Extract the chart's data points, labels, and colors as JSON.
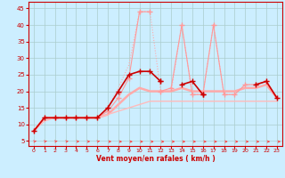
{
  "xlabel": "Vent moyen/en rafales ( km/h )",
  "x_ticks": [
    0,
    1,
    2,
    3,
    4,
    5,
    6,
    7,
    8,
    9,
    10,
    11,
    12,
    13,
    14,
    15,
    16,
    17,
    18,
    19,
    20,
    21,
    22,
    23
  ],
  "y_ticks": [
    5,
    10,
    15,
    20,
    25,
    30,
    35,
    40,
    45
  ],
  "ylim": [
    3.5,
    47
  ],
  "xlim": [
    -0.5,
    23.5
  ],
  "bg_color": "#cceeff",
  "grid_color": "#aacccc",
  "series": [
    {
      "name": "light_dotted",
      "x": [
        0,
        1,
        2,
        3,
        4,
        5,
        6,
        7,
        8,
        9,
        10,
        11,
        12,
        13,
        14,
        15,
        16,
        17,
        18,
        19,
        20,
        21,
        22,
        23
      ],
      "y": [
        8,
        12,
        12,
        12,
        12,
        12,
        12,
        15,
        21,
        28,
        44,
        44,
        20,
        20,
        40,
        19,
        19,
        40,
        19,
        19,
        22,
        22,
        23,
        18
      ],
      "color": "#ffaaaa",
      "lw": 0.8,
      "ls": "dotted",
      "marker": null
    },
    {
      "name": "light_solid1",
      "x": [
        0,
        1,
        2,
        3,
        4,
        5,
        6,
        7,
        8,
        9,
        10,
        11,
        12,
        13,
        14,
        15,
        16,
        17,
        18,
        19,
        20,
        21,
        22,
        23
      ],
      "y": [
        8,
        12,
        12,
        12,
        12,
        12,
        12,
        13,
        16,
        19,
        21,
        20,
        20,
        20,
        21,
        20,
        20,
        20,
        20,
        20,
        21,
        21,
        22,
        18
      ],
      "color": "#ffaaaa",
      "lw": 1.8,
      "ls": "solid",
      "marker": null
    },
    {
      "name": "light_solid2",
      "x": [
        0,
        1,
        2,
        3,
        4,
        5,
        6,
        7,
        8,
        9,
        10,
        11,
        12,
        13,
        14,
        15,
        16,
        17,
        18,
        19,
        20,
        21,
        22,
        23
      ],
      "y": [
        8,
        11,
        12,
        12,
        12,
        12,
        12,
        13,
        14,
        15,
        16,
        17,
        17,
        17,
        17,
        17,
        17,
        17,
        17,
        17,
        17,
        17,
        17,
        17
      ],
      "color": "#ffbbbb",
      "lw": 1.0,
      "ls": "solid",
      "marker": null
    },
    {
      "name": "light_marker1",
      "x": [
        0,
        1,
        2,
        3,
        4,
        5,
        6,
        7,
        8,
        9,
        10,
        11,
        12,
        13,
        14,
        15,
        16,
        17,
        18,
        19,
        20,
        21,
        22,
        23
      ],
      "y": [
        8,
        12,
        12,
        12,
        12,
        12,
        12,
        14,
        18,
        24,
        44,
        44,
        null,
        null,
        null,
        null,
        null,
        null,
        null,
        null,
        null,
        null,
        null,
        null
      ],
      "color": "#ff9999",
      "lw": 0.8,
      "ls": "solid",
      "marker": "+"
    },
    {
      "name": "light_marker2",
      "x": [
        0,
        1,
        2,
        3,
        4,
        5,
        6,
        7,
        8,
        9,
        10,
        11,
        12,
        13,
        14,
        15,
        16,
        17,
        18,
        19,
        20,
        21,
        22,
        23
      ],
      "y": [
        null,
        null,
        null,
        null,
        null,
        null,
        null,
        null,
        null,
        null,
        null,
        null,
        20,
        21,
        40,
        19,
        19,
        40,
        19,
        19,
        22,
        22,
        23,
        18
      ],
      "color": "#ff9999",
      "lw": 0.8,
      "ls": "solid",
      "marker": "+"
    },
    {
      "name": "dark_main",
      "x": [
        0,
        1,
        2,
        3,
        4,
        5,
        6,
        7,
        8,
        9,
        10,
        11,
        12,
        13,
        14,
        15,
        16,
        17,
        18,
        19,
        20,
        21,
        22,
        23
      ],
      "y": [
        8,
        12,
        12,
        12,
        12,
        12,
        12,
        15,
        20,
        25,
        26,
        26,
        23,
        null,
        null,
        null,
        null,
        null,
        null,
        null,
        null,
        null,
        null,
        null
      ],
      "color": "#cc0000",
      "lw": 1.2,
      "ls": "solid",
      "marker": "+"
    },
    {
      "name": "dark_seg2",
      "x": [
        12,
        13,
        14,
        15,
        16,
        17,
        18,
        19,
        20,
        21,
        22,
        23
      ],
      "y": [
        23,
        null,
        22,
        23,
        19,
        null,
        null,
        null,
        null,
        null,
        null,
        null
      ],
      "color": "#cc0000",
      "lw": 1.2,
      "ls": "solid",
      "marker": "+"
    },
    {
      "name": "dark_seg3",
      "x": [
        16,
        17,
        18,
        19,
        20,
        21,
        22,
        23
      ],
      "y": [
        19,
        null,
        null,
        null,
        null,
        22,
        23,
        18
      ],
      "color": "#cc0000",
      "lw": 1.2,
      "ls": "solid",
      "marker": "+"
    }
  ],
  "arrow_angles_deg": [
    45,
    45,
    45,
    35,
    25,
    20,
    45,
    10,
    5,
    5,
    5,
    5,
    5,
    5,
    5,
    5,
    5,
    5,
    5,
    5,
    5,
    5,
    5,
    5
  ]
}
